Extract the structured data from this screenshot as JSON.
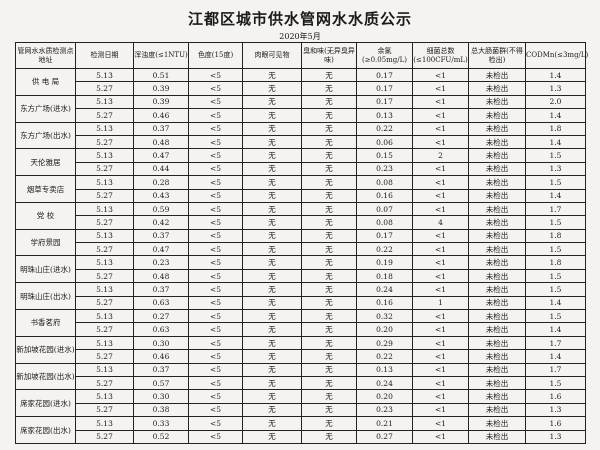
{
  "title": "江都区城市供水管网水水质公示",
  "subtitle": "2020年5月",
  "headers": [
    "管网水水质检测点地址",
    "检测日期",
    "浑浊度(≤1NTU)",
    "色度(15度)",
    "肉眼可见物",
    "臭和味(无异臭异味)",
    "余氯(≥0.05mg/L)",
    "细菌总数(≤100CFU/mL)",
    "总大肠菌群(不得检出)",
    "CODMn(≤3mg/L)"
  ],
  "sites": [
    {
      "name": "供 电 局",
      "rows": [
        [
          "5.13",
          "0.51",
          "<5",
          "无",
          "无",
          "0.17",
          "<1",
          "未检出",
          "1.4"
        ],
        [
          "5.27",
          "0.39",
          "<5",
          "无",
          "无",
          "0.17",
          "<1",
          "未检出",
          "1.3"
        ]
      ]
    },
    {
      "name": "东方广场(进水)",
      "rows": [
        [
          "5.13",
          "0.39",
          "<5",
          "无",
          "无",
          "0.17",
          "<1",
          "未检出",
          "2.0"
        ],
        [
          "5.27",
          "0.46",
          "<5",
          "无",
          "无",
          "0.13",
          "<1",
          "未检出",
          "1.4"
        ]
      ]
    },
    {
      "name": "东方广场(出水)",
      "rows": [
        [
          "5.13",
          "0.37",
          "<5",
          "无",
          "无",
          "0.22",
          "<1",
          "未检出",
          "1.8"
        ],
        [
          "5.27",
          "0.48",
          "<5",
          "无",
          "无",
          "0.06",
          "<1",
          "未检出",
          "1.4"
        ]
      ]
    },
    {
      "name": "天伦雅居",
      "rows": [
        [
          "5.13",
          "0.47",
          "<5",
          "无",
          "无",
          "0.15",
          "2",
          "未检出",
          "1.5"
        ],
        [
          "5.27",
          "0.44",
          "<5",
          "无",
          "无",
          "0.23",
          "<1",
          "未检出",
          "1.3"
        ]
      ]
    },
    {
      "name": "烟草专卖店",
      "rows": [
        [
          "5.13",
          "0.28",
          "<5",
          "无",
          "无",
          "0.08",
          "<1",
          "未检出",
          "1.5"
        ],
        [
          "5.27",
          "0.43",
          "<5",
          "无",
          "无",
          "0.16",
          "<1",
          "未检出",
          "1.4"
        ]
      ]
    },
    {
      "name": "党 校",
      "rows": [
        [
          "5.13",
          "0.59",
          "<5",
          "无",
          "无",
          "0.07",
          "<1",
          "未检出",
          "1.7"
        ],
        [
          "5.27",
          "0.42",
          "<5",
          "无",
          "无",
          "0.08",
          "4",
          "未检出",
          "1.5"
        ]
      ]
    },
    {
      "name": "学府景园",
      "rows": [
        [
          "5.13",
          "0.37",
          "<5",
          "无",
          "无",
          "0.17",
          "<1",
          "未检出",
          "1.8"
        ],
        [
          "5.27",
          "0.47",
          "<5",
          "无",
          "无",
          "0.22",
          "<1",
          "未检出",
          "1.5"
        ]
      ]
    },
    {
      "name": "明珠山庄(进水)",
      "rows": [
        [
          "5.13",
          "0.23",
          "<5",
          "无",
          "无",
          "0.19",
          "<1",
          "未检出",
          "1.8"
        ],
        [
          "5.27",
          "0.48",
          "<5",
          "无",
          "无",
          "0.18",
          "<1",
          "未检出",
          "1.5"
        ]
      ]
    },
    {
      "name": "明珠山庄(出水)",
      "rows": [
        [
          "5.13",
          "0.37",
          "<5",
          "无",
          "无",
          "0.24",
          "<1",
          "未检出",
          "1.5"
        ],
        [
          "5.27",
          "0.63",
          "<5",
          "无",
          "无",
          "0.16",
          "1",
          "未检出",
          "1.4"
        ]
      ]
    },
    {
      "name": "书香茗府",
      "rows": [
        [
          "5.13",
          "0.27",
          "<5",
          "无",
          "无",
          "0.32",
          "<1",
          "未检出",
          "1.5"
        ],
        [
          "5.27",
          "0.63",
          "<5",
          "无",
          "无",
          "0.20",
          "<1",
          "未检出",
          "1.4"
        ]
      ]
    },
    {
      "name": "新加坡花园(进水)",
      "rows": [
        [
          "5.13",
          "0.30",
          "<5",
          "无",
          "无",
          "0.29",
          "<1",
          "未检出",
          "1.7"
        ],
        [
          "5.27",
          "0.46",
          "<5",
          "无",
          "无",
          "0.22",
          "<1",
          "未检出",
          "1.4"
        ]
      ]
    },
    {
      "name": "新加坡花园(出水)",
      "rows": [
        [
          "5.13",
          "0.37",
          "<5",
          "无",
          "无",
          "0.13",
          "<1",
          "未检出",
          "1.7"
        ],
        [
          "5.27",
          "0.57",
          "<5",
          "无",
          "无",
          "0.24",
          "<1",
          "未检出",
          "1.5"
        ]
      ]
    },
    {
      "name": "席家花园(进水)",
      "rows": [
        [
          "5.13",
          "0.30",
          "<5",
          "无",
          "无",
          "0.20",
          "<1",
          "未检出",
          "1.6"
        ],
        [
          "5.27",
          "0.38",
          "<5",
          "无",
          "无",
          "0.23",
          "<1",
          "未检出",
          "1.3"
        ]
      ]
    },
    {
      "name": "席家花园(出水)",
      "rows": [
        [
          "5.13",
          "0.33",
          "<5",
          "无",
          "无",
          "0.21",
          "<1",
          "未检出",
          "1.6"
        ],
        [
          "5.27",
          "0.52",
          "<5",
          "无",
          "无",
          "0.27",
          "<1",
          "未检出",
          "1.3"
        ]
      ]
    }
  ]
}
